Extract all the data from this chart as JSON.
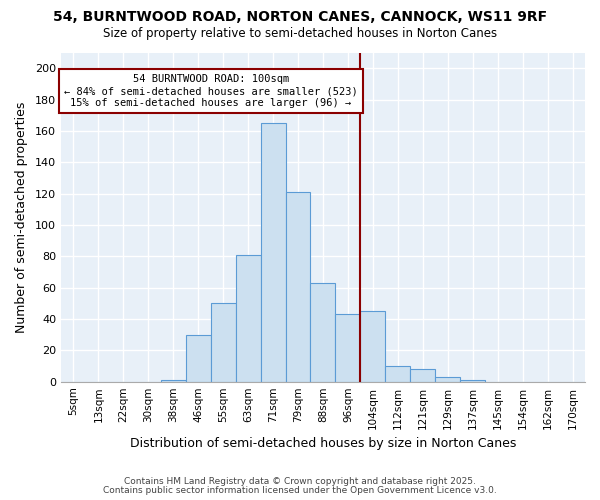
{
  "title1": "54, BURNTWOOD ROAD, NORTON CANES, CANNOCK, WS11 9RF",
  "title2": "Size of property relative to semi-detached houses in Norton Canes",
  "xlabel": "Distribution of semi-detached houses by size in Norton Canes",
  "ylabel": "Number of semi-detached properties",
  "categories": [
    "5sqm",
    "13sqm",
    "22sqm",
    "30sqm",
    "38sqm",
    "46sqm",
    "55sqm",
    "63sqm",
    "71sqm",
    "79sqm",
    "88sqm",
    "96sqm",
    "104sqm",
    "112sqm",
    "121sqm",
    "129sqm",
    "137sqm",
    "145sqm",
    "154sqm",
    "162sqm",
    "170sqm"
  ],
  "values": [
    0,
    0,
    0,
    0,
    1,
    30,
    50,
    81,
    165,
    121,
    63,
    43,
    45,
    10,
    8,
    3,
    1,
    0,
    0,
    0,
    0
  ],
  "bar_color": "#cce0f0",
  "bar_edge_color": "#5b9bd5",
  "annotation_box_color": "#ffffff",
  "annotation_box_edge_color": "#8b0000",
  "vline_color": "#8b0000",
  "vline_x": 11.5,
  "ann_line1": "54 BURNTWOOD ROAD: 100sqm",
  "ann_line2": "← 84% of semi-detached houses are smaller (523)",
  "ann_line3": "15% of semi-detached houses are larger (96) →",
  "footer1": "Contains HM Land Registry data © Crown copyright and database right 2025.",
  "footer2": "Contains public sector information licensed under the Open Government Licence v3.0.",
  "ylim": [
    0,
    210
  ],
  "yticks": [
    0,
    20,
    40,
    60,
    80,
    100,
    120,
    140,
    160,
    180,
    200
  ],
  "background_color": "#ffffff",
  "plot_bg_color": "#e8f0f8"
}
